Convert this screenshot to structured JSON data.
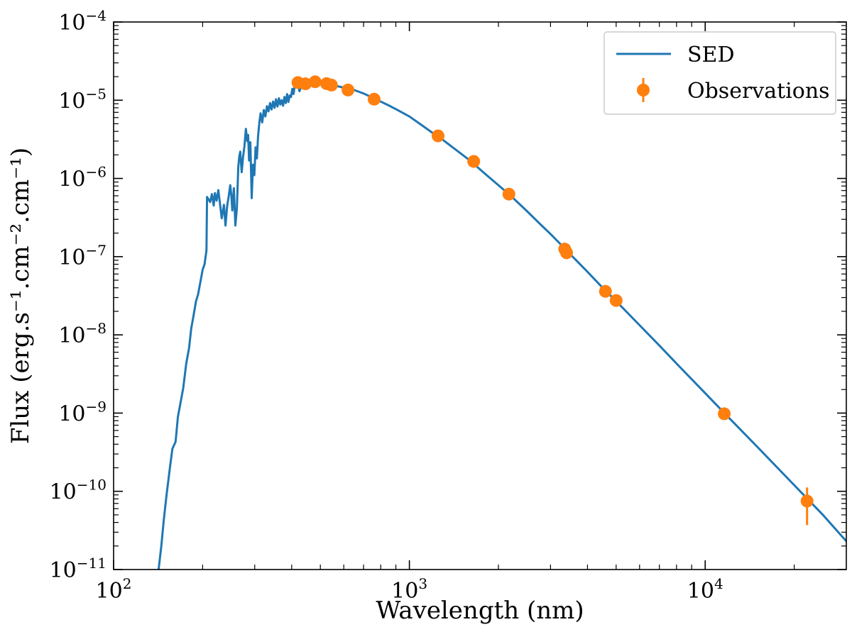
{
  "chart_data": {
    "type": "line",
    "title": "",
    "xlabel": "Wavelength (nm)",
    "ylabel": "Flux (erg.s⁻¹.cm⁻².cm⁻¹)",
    "xscale": "log",
    "yscale": "log",
    "xlim": [
      100,
      30000
    ],
    "ylim": [
      1e-11,
      0.0001
    ],
    "grid": false,
    "legend_position": "top-right",
    "x_tick_labels": [
      {
        "value": 100,
        "base": "10",
        "exp": "2"
      },
      {
        "value": 1000,
        "base": "10",
        "exp": "3"
      },
      {
        "value": 10000,
        "base": "10",
        "exp": "4"
      }
    ],
    "y_tick_labels": [
      {
        "value": 1e-11,
        "base": "10",
        "exp": "−11"
      },
      {
        "value": 1e-10,
        "base": "10",
        "exp": "−10"
      },
      {
        "value": 1e-09,
        "base": "10",
        "exp": "−9"
      },
      {
        "value": 1e-08,
        "base": "10",
        "exp": "−8"
      },
      {
        "value": 1e-07,
        "base": "10",
        "exp": "−7"
      },
      {
        "value": 1e-06,
        "base": "10",
        "exp": "−6"
      },
      {
        "value": 1e-05,
        "base": "10",
        "exp": "−5"
      },
      {
        "value": 0.0001,
        "base": "10",
        "exp": "−4"
      }
    ],
    "series": [
      {
        "name": "SED",
        "kind": "line",
        "color": "#1f77b4",
        "points": [
          [
            142,
            1e-11
          ],
          [
            145,
            2e-11
          ],
          [
            148,
            4.5e-11
          ],
          [
            151,
            9e-11
          ],
          [
            155,
            2e-10
          ],
          [
            158,
            3.5e-10
          ],
          [
            162,
            4.3e-10
          ],
          [
            165,
            9e-10
          ],
          [
            168,
            1.3e-09
          ],
          [
            172,
            2.1e-09
          ],
          [
            176,
            4.3e-09
          ],
          [
            180,
            6.8e-09
          ],
          [
            183,
            1.2e-08
          ],
          [
            186,
            1.7e-08
          ],
          [
            190,
            2.7e-08
          ],
          [
            193,
            3.3e-08
          ],
          [
            197,
            5e-08
          ],
          [
            200,
            6.8e-08
          ],
          [
            203,
            8e-08
          ],
          [
            206,
            1.2e-07
          ],
          [
            207,
            5.8e-07
          ],
          [
            212,
            5e-07
          ],
          [
            215,
            6.3e-07
          ],
          [
            218,
            4.5e-07
          ],
          [
            220,
            6.5e-07
          ],
          [
            223,
            5.2e-07
          ],
          [
            226,
            7.1e-07
          ],
          [
            229,
            4.7e-07
          ],
          [
            232,
            3.1e-07
          ],
          [
            236,
            4.6e-07
          ],
          [
            239,
            2.5e-07
          ],
          [
            242,
            4.4e-07
          ],
          [
            245,
            5.9e-07
          ],
          [
            248,
            8.2e-07
          ],
          [
            250,
            6.1e-07
          ],
          [
            252,
            3.9e-07
          ],
          [
            255,
            7.5e-07
          ],
          [
            258,
            2.5e-07
          ],
          [
            261,
            4.1e-07
          ],
          [
            264,
            1.4e-06
          ],
          [
            266,
            1.9e-06
          ],
          [
            268,
            2.2e-06
          ],
          [
            271,
            1.2e-06
          ],
          [
            274,
            1.9e-06
          ],
          [
            277,
            2.6e-06
          ],
          [
            280,
            4.3e-06
          ],
          [
            283,
            3e-06
          ],
          [
            285,
            3.6e-06
          ],
          [
            287,
            1.7e-06
          ],
          [
            290,
            2.9e-06
          ],
          [
            293,
            5.6e-07
          ],
          [
            296,
            1.5e-06
          ],
          [
            299,
            1.1e-06
          ],
          [
            302,
            2.5e-06
          ],
          [
            305,
            1.8e-06
          ],
          [
            308,
            3.5e-06
          ],
          [
            311,
            5.2e-06
          ],
          [
            314,
            6.8e-06
          ],
          [
            318,
            5.2e-06
          ],
          [
            322,
            7.5e-06
          ],
          [
            326,
            6.2e-06
          ],
          [
            330,
            8.4e-06
          ],
          [
            334,
            7.2e-06
          ],
          [
            338,
            9.2e-06
          ],
          [
            342,
            7.6e-06
          ],
          [
            346,
            9.6e-06
          ],
          [
            350,
            8e-06
          ],
          [
            354,
            1.03e-05
          ],
          [
            358,
            8.3e-06
          ],
          [
            362,
            1.06e-05
          ],
          [
            366,
            8.8e-06
          ],
          [
            370,
            1e-05
          ],
          [
            374,
            8.5e-06
          ],
          [
            378,
            1.1e-05
          ],
          [
            382,
            9.2e-06
          ],
          [
            386,
            1.2e-05
          ],
          [
            390,
            9.5e-06
          ],
          [
            394,
            1.15e-05
          ],
          [
            398,
            1.1e-05
          ],
          [
            402,
            1.4e-05
          ],
          [
            406,
            1.2e-05
          ],
          [
            410,
            1.6e-05
          ],
          [
            415,
            1.5e-05
          ],
          [
            420,
            1.6e-05
          ],
          [
            425,
            1.3e-05
          ],
          [
            430,
            1.5e-05
          ],
          [
            440,
            1.6e-05
          ],
          [
            460,
            1.65e-05
          ],
          [
            480,
            1.6e-05
          ],
          [
            500,
            1.6e-05
          ],
          [
            540,
            1.58e-05
          ],
          [
            600,
            1.45e-05
          ],
          [
            650,
            1.35e-05
          ],
          [
            700,
            1.22e-05
          ],
          [
            750,
            1.08e-05
          ],
          [
            800,
            9.6e-06
          ],
          [
            850,
            8.6e-06
          ],
          [
            900,
            7.7e-06
          ],
          [
            1000,
            6.2e-06
          ],
          [
            1100,
            4.8e-06
          ],
          [
            1200,
            3.8e-06
          ],
          [
            1300,
            3.1e-06
          ],
          [
            1400,
            2.5e-06
          ],
          [
            1500,
            2.05e-06
          ],
          [
            1600,
            1.7e-06
          ],
          [
            1800,
            1.15e-06
          ],
          [
            2000,
            8.2e-07
          ],
          [
            2200,
            6e-07
          ],
          [
            2500,
            3.8e-07
          ],
          [
            2800,
            2.5e-07
          ],
          [
            3000,
            1.95e-07
          ],
          [
            3300,
            1.35e-07
          ],
          [
            3500,
            1.07e-07
          ],
          [
            4000,
            6.4e-08
          ],
          [
            4500,
            4e-08
          ],
          [
            5000,
            2.7e-08
          ],
          [
            6000,
            1.33e-08
          ],
          [
            7000,
            7.3e-09
          ],
          [
            8000,
            4.3e-09
          ],
          [
            10000,
            1.8e-09
          ],
          [
            12000,
            8.8e-10
          ],
          [
            15000,
            3.7e-10
          ],
          [
            20000,
            1.2e-10
          ],
          [
            25000,
            5e-11
          ],
          [
            30000,
            2.3e-11
          ]
        ]
      },
      {
        "name": "Observations",
        "kind": "errorbar",
        "color": "#ff7f0e",
        "points": [
          {
            "x": 420,
            "y": 1.68e-05
          },
          {
            "x": 445,
            "y": 1.62e-05
          },
          {
            "x": 480,
            "y": 1.72e-05
          },
          {
            "x": 525,
            "y": 1.63e-05
          },
          {
            "x": 545,
            "y": 1.56e-05
          },
          {
            "x": 620,
            "y": 1.35e-05
          },
          {
            "x": 760,
            "y": 1.03e-05
          },
          {
            "x": 1250,
            "y": 3.5e-06
          },
          {
            "x": 1650,
            "y": 1.65e-06
          },
          {
            "x": 2170,
            "y": 6.3e-07
          },
          {
            "x": 3350,
            "y": 1.25e-07
          },
          {
            "x": 3400,
            "y": 1.12e-07
          },
          {
            "x": 4600,
            "y": 3.6e-08
          },
          {
            "x": 5000,
            "y": 2.75e-08
          },
          {
            "x": 11600,
            "y": 9.8e-10
          },
          {
            "x": 22100,
            "y": 7.5e-11,
            "yerr_low": 3.7e-11,
            "yerr_high": 1.12e-10
          }
        ]
      }
    ]
  }
}
